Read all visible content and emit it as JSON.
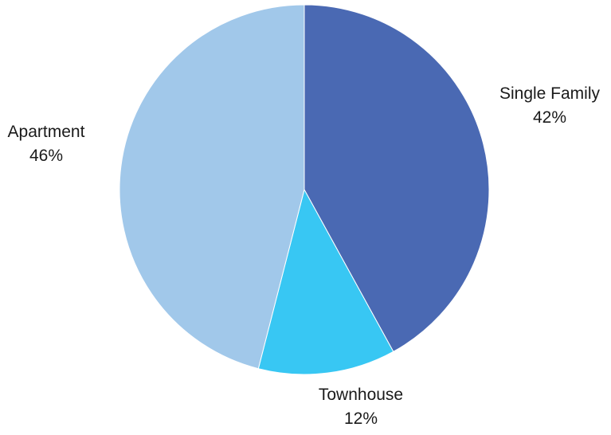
{
  "chart_data": {
    "type": "pie",
    "start_angle_deg": 0,
    "direction": "clockwise",
    "slices": [
      {
        "label": "Single Family",
        "value": 42,
        "value_label": "42%",
        "color": "#4A69B3"
      },
      {
        "label": "Townhouse",
        "value": 12,
        "value_label": "12%",
        "color": "#38C7F3"
      },
      {
        "label": "Apartment",
        "value": 46,
        "value_label": "46%",
        "color": "#A1C8EA"
      }
    ],
    "title": "",
    "legend": "none"
  }
}
